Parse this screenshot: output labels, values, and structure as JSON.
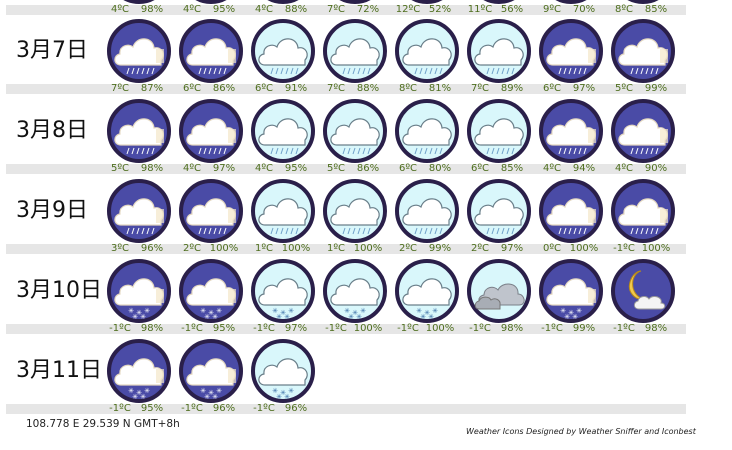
{
  "days": [
    {
      "label": "",
      "slots": [
        {
          "temp": "4ºC",
          "hum": "98%",
          "icon": "night-cloud-rain-icon"
        },
        {
          "temp": "4ºC",
          "hum": "95%",
          "icon": "night-cloud-rain-icon"
        },
        {
          "temp": "4ºC",
          "hum": "88%",
          "icon": "day-cloud-rain-icon"
        },
        {
          "temp": "7ºC",
          "hum": "72%",
          "icon": "day-cloud-rain-icon"
        },
        {
          "temp": "12ºC",
          "hum": "52%",
          "icon": "day-cloud-rain-icon"
        },
        {
          "temp": "11ºC",
          "hum": "56%",
          "icon": "day-cloud-rain-icon"
        },
        {
          "temp": "9ºC",
          "hum": "70%",
          "icon": "night-cloud-rain-icon"
        },
        {
          "temp": "8ºC",
          "hum": "85%",
          "icon": "night-cloud-rain-icon"
        }
      ]
    },
    {
      "label": "3月7日",
      "slots": [
        {
          "temp": "7ºC",
          "hum": "87%",
          "icon": "night-cloud-rain-icon"
        },
        {
          "temp": "6ºC",
          "hum": "86%",
          "icon": "night-cloud-rain-icon"
        },
        {
          "temp": "6ºC",
          "hum": "91%",
          "icon": "day-cloud-rain-icon"
        },
        {
          "temp": "7ºC",
          "hum": "88%",
          "icon": "day-cloud-rain-icon"
        },
        {
          "temp": "8ºC",
          "hum": "81%",
          "icon": "day-cloud-rain-icon"
        },
        {
          "temp": "7ºC",
          "hum": "89%",
          "icon": "day-cloud-rain-icon"
        },
        {
          "temp": "6ºC",
          "hum": "97%",
          "icon": "night-cloud-rain-icon"
        },
        {
          "temp": "5ºC",
          "hum": "99%",
          "icon": "night-cloud-rain-icon"
        }
      ]
    },
    {
      "label": "3月8日",
      "slots": [
        {
          "temp": "5ºC",
          "hum": "98%",
          "icon": "night-cloud-rain-icon"
        },
        {
          "temp": "4ºC",
          "hum": "97%",
          "icon": "night-cloud-rain-icon"
        },
        {
          "temp": "4ºC",
          "hum": "95%",
          "icon": "day-cloud-rain-icon"
        },
        {
          "temp": "5ºC",
          "hum": "86%",
          "icon": "day-cloud-rain-icon"
        },
        {
          "temp": "6ºC",
          "hum": "80%",
          "icon": "day-cloud-rain-icon"
        },
        {
          "temp": "6ºC",
          "hum": "85%",
          "icon": "day-cloud-rain-icon"
        },
        {
          "temp": "4ºC",
          "hum": "94%",
          "icon": "night-cloud-rain-icon"
        },
        {
          "temp": "4ºC",
          "hum": "90%",
          "icon": "night-cloud-rain-icon"
        }
      ]
    },
    {
      "label": "3月9日",
      "slots": [
        {
          "temp": "3ºC",
          "hum": "96%",
          "icon": "night-cloud-rain-icon"
        },
        {
          "temp": "2ºC",
          "hum": "100%",
          "icon": "night-cloud-rain-icon"
        },
        {
          "temp": "1ºC",
          "hum": "100%",
          "icon": "day-cloud-rain-icon"
        },
        {
          "temp": "1ºC",
          "hum": "100%",
          "icon": "day-cloud-rain-icon"
        },
        {
          "temp": "2ºC",
          "hum": "99%",
          "icon": "day-cloud-rain-icon"
        },
        {
          "temp": "2ºC",
          "hum": "97%",
          "icon": "day-cloud-rain-icon"
        },
        {
          "temp": "0ºC",
          "hum": "100%",
          "icon": "night-cloud-rain-icon"
        },
        {
          "temp": "-1ºC",
          "hum": "100%",
          "icon": "night-cloud-rain-icon"
        }
      ]
    },
    {
      "label": "3月10日",
      "slots": [
        {
          "temp": "-1ºC",
          "hum": "98%",
          "icon": "night-cloud-snow-icon"
        },
        {
          "temp": "-1ºC",
          "hum": "95%",
          "icon": "night-cloud-snow-icon"
        },
        {
          "temp": "-1ºC",
          "hum": "97%",
          "icon": "day-cloud-snow-icon"
        },
        {
          "temp": "-1ºC",
          "hum": "100%",
          "icon": "day-cloud-snow-icon"
        },
        {
          "temp": "-1ºC",
          "hum": "100%",
          "icon": "day-cloud-snow-icon"
        },
        {
          "temp": "-1ºC",
          "hum": "98%",
          "icon": "day-overcast-icon"
        },
        {
          "temp": "-1ºC",
          "hum": "99%",
          "icon": "night-cloud-snow-icon"
        },
        {
          "temp": "-1ºC",
          "hum": "98%",
          "icon": "night-moon-cloud-icon"
        }
      ]
    },
    {
      "label": "3月11日",
      "slots": [
        {
          "temp": "-1ºC",
          "hum": "95%",
          "icon": "night-cloud-snow-icon"
        },
        {
          "temp": "-1ºC",
          "hum": "96%",
          "icon": "night-cloud-snow-icon"
        },
        {
          "temp": "-1ºC",
          "hum": "96%",
          "icon": "day-cloud-snow-icon"
        }
      ]
    }
  ],
  "footer": {
    "coords": "108.778 E 29.539 N GMT+8h",
    "credit": "Weather Icons Designed by Weather Sniffer and Iconbest"
  },
  "colors": {
    "night_bg": "#4a4ba6",
    "day_bg": "#d9f7fb",
    "ring": "#2a1f4a",
    "label_green": "#4e6e1e",
    "strip": "#e6e6e6"
  }
}
